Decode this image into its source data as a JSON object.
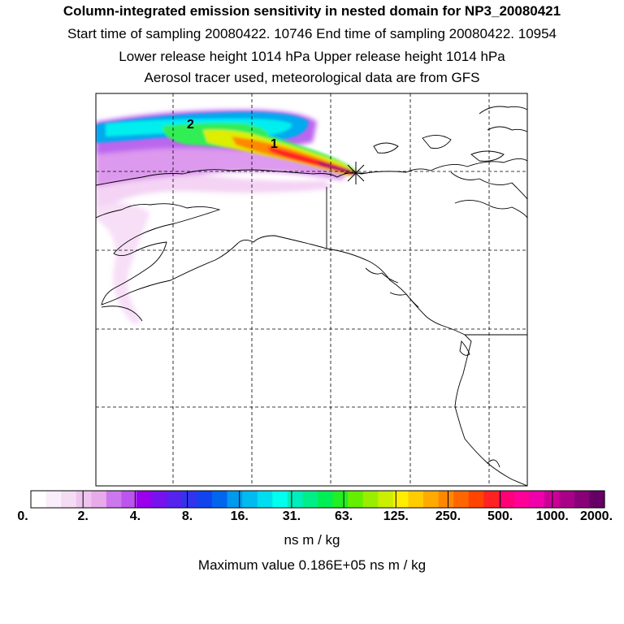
{
  "header": {
    "title": "Column-integrated emission sensitivity in nested domain for NP3_20080421",
    "line1": "Start time of sampling 20080422. 10746     End time of sampling 20080422. 10954",
    "line2": "Lower release height 1014 hPa        Upper release height 1014 hPa",
    "line3": "Aerosol tracer used, meteorological data are from GFS"
  },
  "map": {
    "plume_labels": [
      {
        "text": "2"
      },
      {
        "text": "1"
      }
    ],
    "release_marker": "star-cross-icon"
  },
  "colorbar": {
    "tick_labels": [
      "0.",
      "2.",
      "4.",
      "8.",
      "16.",
      "31.",
      "63.",
      "125.",
      "250.",
      "500.",
      "1000.",
      "2000."
    ],
    "colors": [
      "#ffffff",
      "#fbeefb",
      "#f5dcf5",
      "#eec4ee",
      "#e8aaea",
      "#cc77ee",
      "#bb55ee",
      "#9900ee",
      "#7711ee",
      "#5522ee",
      "#3333ee",
      "#1144ee",
      "#0066ee",
      "#0099ee",
      "#00bbee",
      "#00ddee",
      "#00ffee",
      "#00eebb",
      "#00ee88",
      "#00ee55",
      "#22ee22",
      "#66ee00",
      "#99ee00",
      "#ccee00",
      "#ffee00",
      "#ffcc00",
      "#ffaa00",
      "#ff8800",
      "#ff6600",
      "#ff4400",
      "#ff2222",
      "#ff0077",
      "#ff0099",
      "#ee00aa",
      "#cc0099",
      "#aa0088",
      "#880077",
      "#660066"
    ],
    "units": "ns m / kg",
    "max_value": "Maximum value  0.186E+05 ns m / kg"
  }
}
